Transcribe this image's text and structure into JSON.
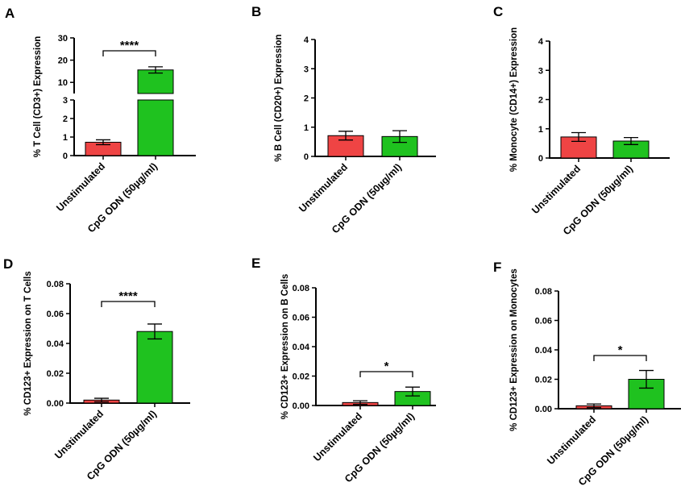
{
  "colors": {
    "unstimulated": "#ef4444",
    "cpg": "#1fc21f",
    "axis": "#000000"
  },
  "chart_data": [
    {
      "id": "A",
      "panel_label": "A",
      "type": "bar",
      "ylabel": "% T Cell (CD3+) Expression",
      "categories": [
        "Unstimulated",
        "CpG ODN (50µg/ml)"
      ],
      "values": [
        0.72,
        15.6
      ],
      "errors": [
        0.13,
        1.4
      ],
      "broken_axis": {
        "lower": {
          "range": [
            0,
            3
          ],
          "ticks": [
            "0",
            "1",
            "2",
            "3"
          ]
        },
        "upper": {
          "range": [
            5,
            30
          ],
          "ticks": [
            "10",
            "20",
            "30"
          ]
        }
      },
      "significance": "****"
    },
    {
      "id": "B",
      "panel_label": "B",
      "type": "bar",
      "ylabel": "% B Cell (CD20+) Expression",
      "categories": [
        "Unstimulated",
        "CpG ODN (50µg/ml)"
      ],
      "values": [
        0.71,
        0.68
      ],
      "errors": [
        0.15,
        0.2
      ],
      "ylim": [
        0,
        4
      ],
      "ticks": [
        "0",
        "1",
        "2",
        "3",
        "4"
      ],
      "significance": ""
    },
    {
      "id": "C",
      "panel_label": "C",
      "type": "bar",
      "ylabel": "% Monocyte (CD14+) Expression",
      "categories": [
        "Unstimulated",
        "CpG ODN (50µg/ml)"
      ],
      "values": [
        0.72,
        0.58
      ],
      "errors": [
        0.15,
        0.12
      ],
      "ylim": [
        0,
        4
      ],
      "ticks": [
        "0",
        "1",
        "2",
        "3",
        "4"
      ],
      "significance": ""
    },
    {
      "id": "D",
      "panel_label": "D",
      "type": "bar",
      "ylabel": "% CD123+ Expression on T Cells",
      "categories": [
        "Unstimulated",
        "CpG ODN (50µg/ml)"
      ],
      "values": [
        0.002,
        0.048
      ],
      "errors": [
        0.0012,
        0.005
      ],
      "ylim": [
        0,
        0.08
      ],
      "ticks": [
        "0.00",
        "0.02",
        "0.04",
        "0.06",
        "0.08"
      ],
      "significance": "****"
    },
    {
      "id": "E",
      "panel_label": "E",
      "type": "bar",
      "ylabel": "% CD123+ Expression on B Cells",
      "categories": [
        "Unstimulated",
        "CpG ODN (50µg/ml)"
      ],
      "values": [
        0.002,
        0.0095
      ],
      "errors": [
        0.0012,
        0.003
      ],
      "ylim": [
        0,
        0.08
      ],
      "ticks": [
        "0.00",
        "0.02",
        "0.04",
        "0.06",
        "0.08"
      ],
      "significance": "*"
    },
    {
      "id": "F",
      "panel_label": "F",
      "type": "bar",
      "ylabel": "% CD123+ Expression on Monocytes",
      "categories": [
        "Unstimulated",
        "CpG ODN (50µg/ml)"
      ],
      "values": [
        0.002,
        0.02
      ],
      "errors": [
        0.0012,
        0.006
      ],
      "ylim": [
        0,
        0.08
      ],
      "ticks": [
        "0.00",
        "0.02",
        "0.04",
        "0.06",
        "0.08"
      ],
      "significance": "*"
    }
  ]
}
